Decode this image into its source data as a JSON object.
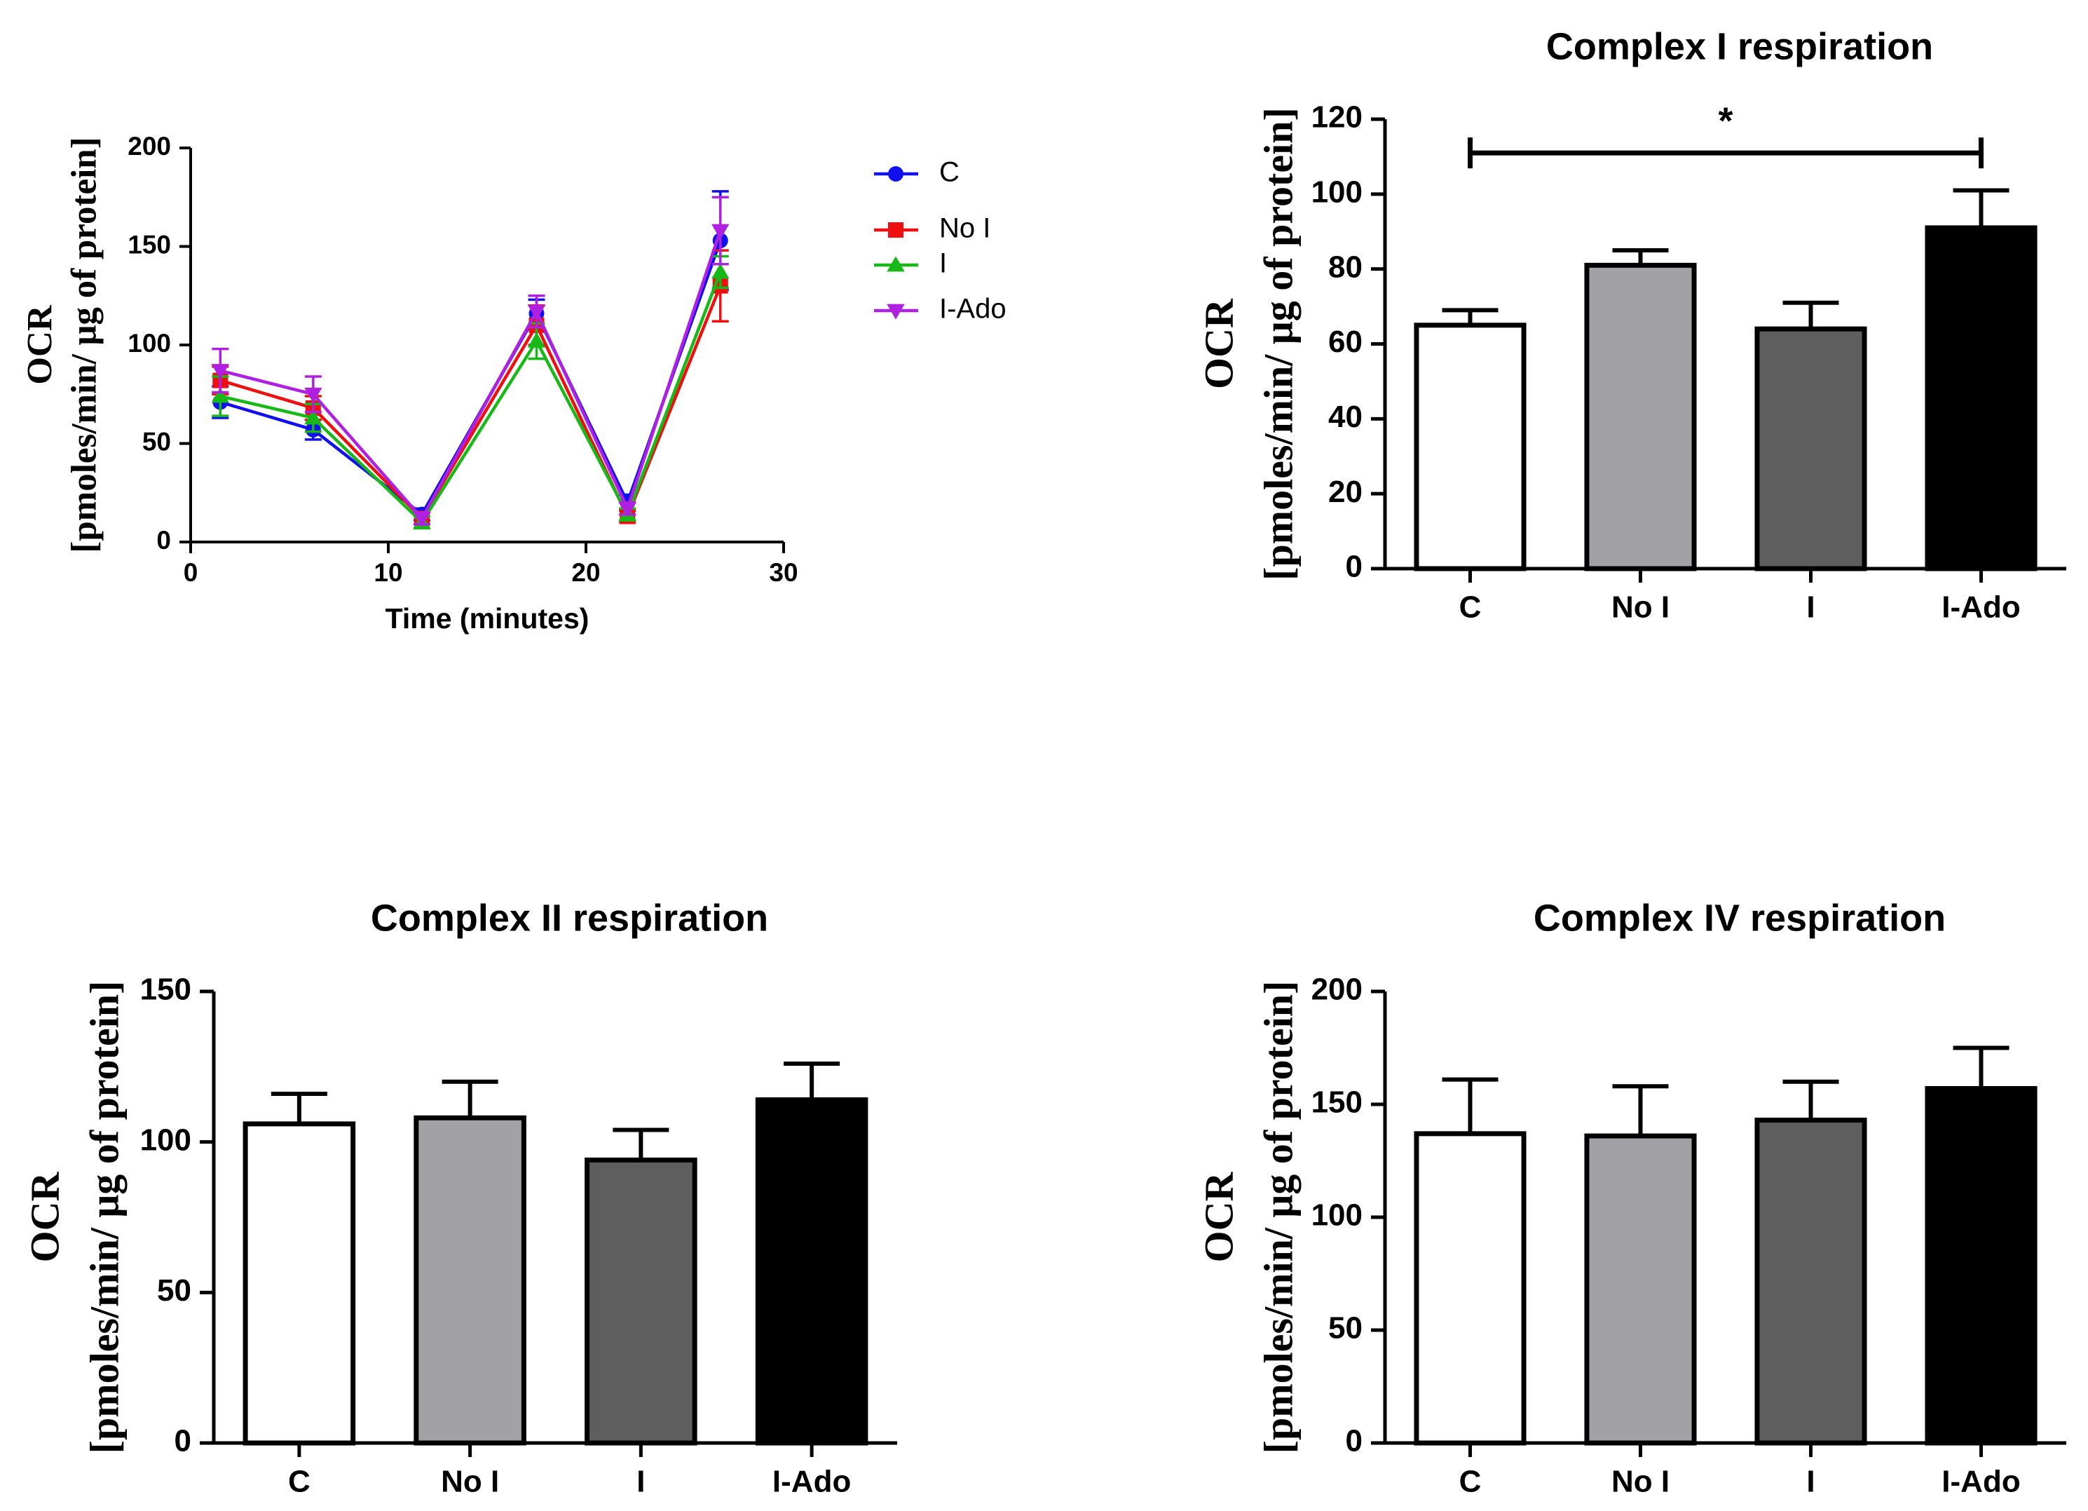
{
  "chart_data": [
    {
      "type": "line",
      "title": "",
      "xlabel": "Time (minutes)",
      "ylabel_top": "OCR",
      "ylabel_bottom": "[pmoles/min/ μg of protein]",
      "xlim": [
        0,
        30
      ],
      "ylim": [
        0,
        200
      ],
      "xticks": [
        0,
        10,
        20,
        30
      ],
      "yticks": [
        0,
        50,
        100,
        150,
        200
      ],
      "grid": false,
      "legend_position": "right",
      "x": [
        1.5,
        6.2,
        11.7,
        17.5,
        22.1,
        26.8
      ],
      "series": [
        {
          "name": "C",
          "color": "#1010ee",
          "marker": "circle",
          "values": [
            71,
            57,
            14,
            116,
            20,
            153
          ],
          "errors": [
            8,
            5,
            3,
            7,
            4,
            25
          ]
        },
        {
          "name": "No I",
          "color": "#ee1010",
          "marker": "square",
          "values": [
            82,
            68,
            12,
            110,
            13,
            130
          ],
          "errors": [
            7,
            6,
            3,
            10,
            3,
            18
          ]
        },
        {
          "name": "I",
          "color": "#18b818",
          "marker": "triangle-up",
          "values": [
            74,
            63,
            10,
            102,
            14,
            137
          ],
          "errors": [
            10,
            7,
            3,
            9,
            3,
            8
          ]
        },
        {
          "name": "I-Ado",
          "color": "#b020e0",
          "marker": "triangle-down",
          "values": [
            87,
            75,
            12,
            117,
            17,
            158
          ],
          "errors": [
            11,
            9,
            3,
            8,
            3,
            17
          ]
        }
      ]
    },
    {
      "type": "bar",
      "title": "Complex I respiration",
      "ylabel_top": "OCR",
      "ylabel_bottom": "[pmoles/min/ μg of protein]",
      "categories": [
        "C",
        "No I",
        "I",
        "I-Ado"
      ],
      "values": [
        65,
        81,
        64,
        91
      ],
      "errors": [
        4,
        4,
        7,
        10
      ],
      "fills": [
        "#ffffff",
        "#a2a2a6",
        "#5e5e5e",
        "#000000"
      ],
      "ylim": [
        0,
        120
      ],
      "yticks": [
        0,
        20,
        40,
        60,
        80,
        100,
        120
      ],
      "grid": false,
      "annotation": {
        "text": "*",
        "from": "C",
        "to": "I-Ado",
        "y": 111
      }
    },
    {
      "type": "bar",
      "title": "Complex II respiration",
      "ylabel_top": "OCR",
      "ylabel_bottom": "[pmoles/min/ μg of protein]",
      "categories": [
        "C",
        "No I",
        "I",
        "I-Ado"
      ],
      "values": [
        106,
        108,
        94,
        114
      ],
      "errors": [
        10,
        12,
        10,
        12
      ],
      "fills": [
        "#ffffff",
        "#a2a2a6",
        "#5e5e5e",
        "#000000"
      ],
      "ylim": [
        0,
        150
      ],
      "yticks": [
        0,
        50,
        100,
        150
      ],
      "grid": false
    },
    {
      "type": "bar",
      "title": "Complex IV respiration",
      "ylabel_top": "OCR",
      "ylabel_bottom": "[pmoles/min/ μg of protein]",
      "categories": [
        "C",
        "No I",
        "I",
        "I-Ado"
      ],
      "values": [
        137,
        136,
        143,
        157
      ],
      "errors": [
        24,
        22,
        17,
        18
      ],
      "fills": [
        "#ffffff",
        "#a2a2a6",
        "#5e5e5e",
        "#000000"
      ],
      "ylim": [
        0,
        200
      ],
      "yticks": [
        0,
        50,
        100,
        150,
        200
      ],
      "grid": false
    }
  ]
}
